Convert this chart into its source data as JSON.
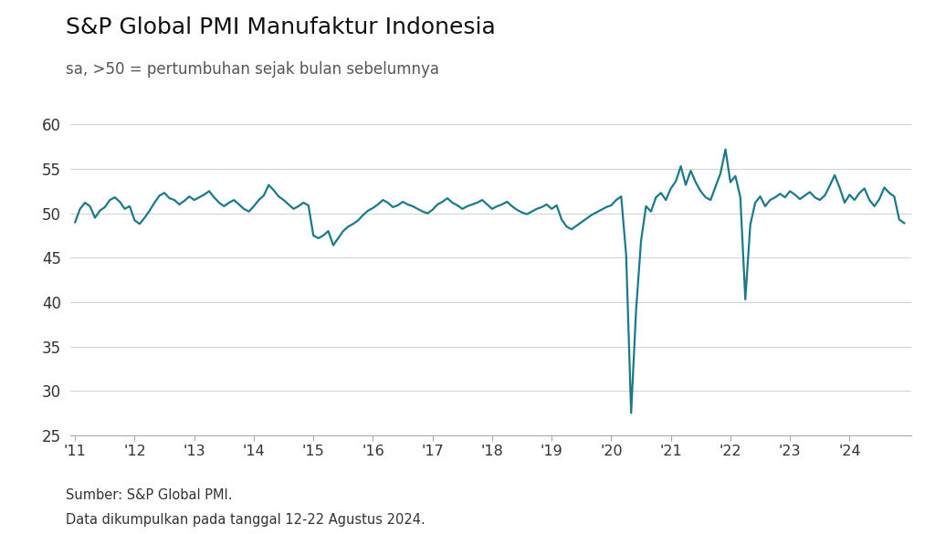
{
  "title": "S&P Global PMI Manufaktur Indonesia",
  "subtitle": "sa, >50 = pertumbuhan sejak bulan sebelumnya",
  "footer_line1": "Sumber: S&P Global PMI.",
  "footer_line2": "Data dikumpulkan pada tanggal 12-22 Agustus 2024.",
  "line_color": "#1a7a8a",
  "background_color": "#ffffff",
  "line_width": 1.6,
  "ylim": [
    25,
    62
  ],
  "yticks": [
    25,
    30,
    35,
    40,
    45,
    50,
    55,
    60
  ],
  "xtick_labels": [
    "'11",
    "'12",
    "'13",
    "'14",
    "'15",
    "'16",
    "'17",
    "'18",
    "'19",
    "'20",
    "'21",
    "'22",
    "'23",
    "'24"
  ],
  "xtick_positions": [
    0,
    12,
    24,
    36,
    48,
    60,
    72,
    84,
    96,
    108,
    120,
    132,
    144,
    156
  ],
  "pmi_data": [
    49.0,
    50.5,
    51.2,
    50.8,
    49.5,
    50.3,
    50.7,
    51.5,
    51.8,
    51.3,
    50.5,
    50.8,
    49.2,
    48.8,
    49.5,
    50.3,
    51.2,
    52.0,
    52.3,
    51.7,
    51.5,
    51.0,
    51.4,
    51.9,
    51.5,
    51.8,
    52.1,
    52.5,
    51.8,
    51.2,
    50.8,
    51.2,
    51.5,
    51.0,
    50.5,
    50.2,
    50.8,
    51.5,
    52.0,
    53.2,
    52.6,
    51.9,
    51.5,
    51.0,
    50.5,
    50.8,
    51.2,
    50.9,
    47.5,
    47.2,
    47.5,
    48.0,
    46.4,
    47.2,
    48.0,
    48.5,
    48.8,
    49.2,
    49.8,
    50.3,
    50.6,
    51.0,
    51.5,
    51.2,
    50.7,
    50.9,
    51.3,
    51.0,
    50.8,
    50.5,
    50.2,
    50.0,
    50.4,
    51.0,
    51.3,
    51.7,
    51.2,
    50.9,
    50.5,
    50.8,
    51.0,
    51.2,
    51.5,
    51.0,
    50.5,
    50.8,
    51.0,
    51.3,
    50.8,
    50.4,
    50.1,
    49.9,
    50.2,
    50.5,
    50.7,
    51.0,
    50.5,
    50.9,
    49.3,
    48.5,
    48.2,
    48.6,
    49.0,
    49.4,
    49.8,
    50.1,
    50.4,
    50.7,
    50.9,
    51.5,
    51.9,
    45.3,
    27.5,
    39.1,
    46.9,
    50.8,
    50.2,
    51.8,
    52.3,
    51.5,
    52.8,
    53.6,
    55.3,
    53.2,
    54.8,
    53.5,
    52.5,
    51.8,
    51.5,
    53.0,
    54.5,
    57.2,
    53.5,
    54.2,
    51.8,
    40.3,
    48.7,
    51.2,
    51.9,
    50.8,
    51.5,
    51.8,
    52.2,
    51.8,
    52.5,
    52.1,
    51.6,
    52.0,
    52.4,
    51.8,
    51.5,
    52.0,
    53.1,
    54.3,
    52.9,
    51.2,
    52.1,
    51.5,
    52.3,
    52.8,
    51.5,
    50.8,
    51.6,
    52.9,
    52.3,
    51.9,
    49.3,
    48.9
  ]
}
